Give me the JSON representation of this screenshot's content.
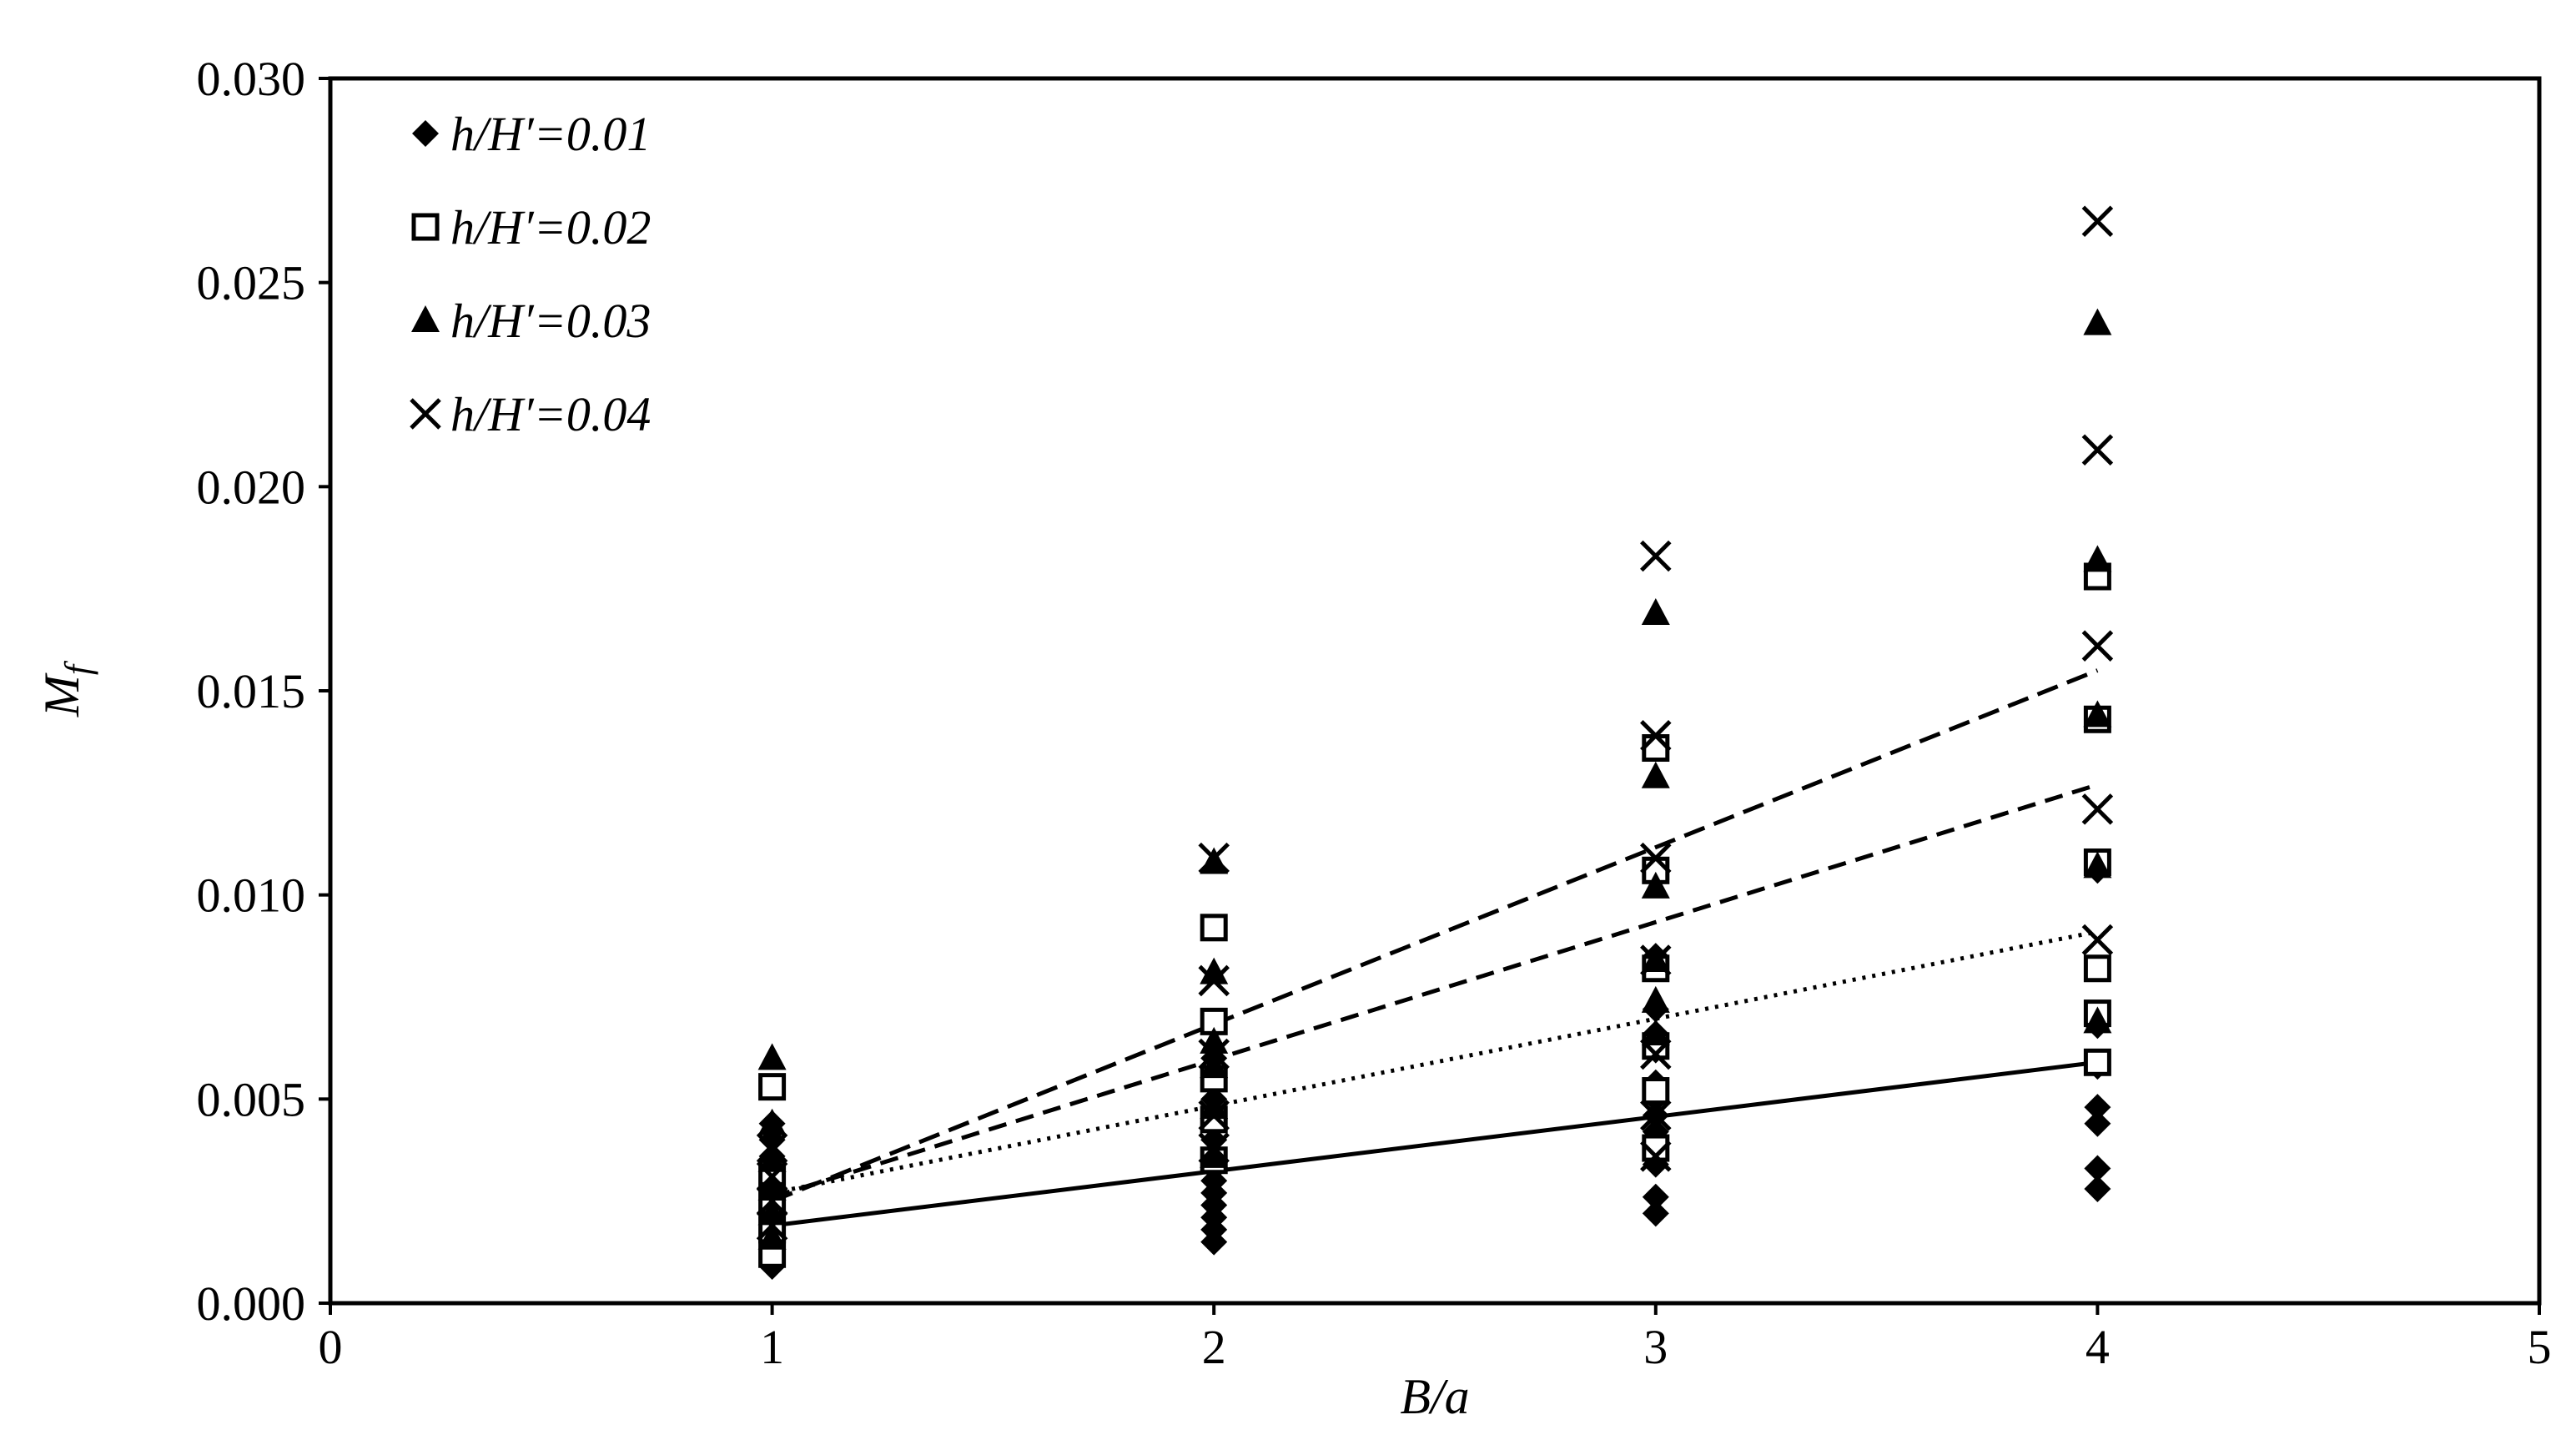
{
  "chart_data": {
    "type": "scatter",
    "title": "",
    "xlabel": "B/a",
    "ylabel": {
      "main": "M",
      "sub": "f"
    },
    "xlim": [
      0,
      5
    ],
    "ylim": [
      0,
      0.03
    ],
    "x_ticks": [
      "0",
      "1",
      "2",
      "3",
      "4",
      "5"
    ],
    "y_ticks": [
      "0.000",
      "0.005",
      "0.010",
      "0.015",
      "0.020",
      "0.025",
      "0.030"
    ],
    "grid": false,
    "legend_position": "top-left",
    "series": [
      {
        "name": "h/H′=0.01",
        "marker": "diamond",
        "trendline_style": "solid",
        "trendline": [
          [
            1,
            0.0019
          ],
          [
            4,
            0.0059
          ]
        ],
        "points": [
          [
            1,
            0.0009
          ],
          [
            1,
            0.0011
          ],
          [
            1,
            0.0013
          ],
          [
            1,
            0.0015
          ],
          [
            1,
            0.0017
          ],
          [
            1,
            0.0019
          ],
          [
            1,
            0.0021
          ],
          [
            1,
            0.0023
          ],
          [
            1,
            0.0025
          ],
          [
            1,
            0.0027
          ],
          [
            1,
            0.0029
          ],
          [
            1,
            0.0032
          ],
          [
            1,
            0.0036
          ],
          [
            1,
            0.004
          ],
          [
            1,
            0.0044
          ],
          [
            2,
            0.0015
          ],
          [
            2,
            0.0018
          ],
          [
            2,
            0.0021
          ],
          [
            2,
            0.0024
          ],
          [
            2,
            0.0027
          ],
          [
            2,
            0.003
          ],
          [
            2,
            0.0033
          ],
          [
            2,
            0.0036
          ],
          [
            2,
            0.004
          ],
          [
            2,
            0.0045
          ],
          [
            2,
            0.005
          ],
          [
            2,
            0.0055
          ],
          [
            2,
            0.006
          ],
          [
            3,
            0.0022
          ],
          [
            3,
            0.0026
          ],
          [
            3,
            0.0034
          ],
          [
            3,
            0.0038
          ],
          [
            3,
            0.0042
          ],
          [
            3,
            0.0046
          ],
          [
            3,
            0.005
          ],
          [
            3,
            0.0054
          ],
          [
            3,
            0.0062
          ],
          [
            3,
            0.0066
          ],
          [
            3,
            0.0072
          ],
          [
            3,
            0.0085
          ],
          [
            4,
            0.0028
          ],
          [
            4,
            0.0033
          ],
          [
            4,
            0.0044
          ],
          [
            4,
            0.0048
          ],
          [
            4,
            0.0058
          ],
          [
            4,
            0.0068
          ],
          [
            4,
            0.0071
          ],
          [
            4,
            0.0106
          ]
        ]
      },
      {
        "name": "h/H′=0.02",
        "marker": "open-square",
        "trendline_style": "dotted",
        "trendline": [
          [
            1,
            0.0027
          ],
          [
            4,
            0.0091
          ]
        ],
        "points": [
          [
            1,
            0.0012
          ],
          [
            1,
            0.0018
          ],
          [
            1,
            0.0025
          ],
          [
            1,
            0.0032
          ],
          [
            1,
            0.0053
          ],
          [
            2,
            0.0035
          ],
          [
            2,
            0.0045
          ],
          [
            2,
            0.0055
          ],
          [
            2,
            0.0069
          ],
          [
            2,
            0.0092
          ],
          [
            3,
            0.0038
          ],
          [
            3,
            0.0052
          ],
          [
            3,
            0.0063
          ],
          [
            3,
            0.0082
          ],
          [
            3,
            0.0106
          ],
          [
            3,
            0.0136
          ],
          [
            4,
            0.0059
          ],
          [
            4,
            0.0071
          ],
          [
            4,
            0.0082
          ],
          [
            4,
            0.0108
          ],
          [
            4,
            0.0143
          ],
          [
            4,
            0.0178
          ]
        ]
      },
      {
        "name": "h/H′=0.03",
        "marker": "filled-triangle",
        "trendline_style": "short-dash",
        "trendline": [
          [
            1,
            0.0026
          ],
          [
            4,
            0.0127
          ]
        ],
        "points": [
          [
            1,
            0.0016
          ],
          [
            1,
            0.0022
          ],
          [
            1,
            0.0028
          ],
          [
            1,
            0.0035
          ],
          [
            1,
            0.0044
          ],
          [
            1,
            0.006
          ],
          [
            2,
            0.0036
          ],
          [
            2,
            0.0048
          ],
          [
            2,
            0.0058
          ],
          [
            2,
            0.0064
          ],
          [
            2,
            0.0081
          ],
          [
            2,
            0.0108
          ],
          [
            3,
            0.0066
          ],
          [
            3,
            0.0074
          ],
          [
            3,
            0.0084
          ],
          [
            3,
            0.0102
          ],
          [
            3,
            0.0129
          ],
          [
            3,
            0.0169
          ],
          [
            4,
            0.0069
          ],
          [
            4,
            0.0107
          ],
          [
            4,
            0.0144
          ],
          [
            4,
            0.0182
          ],
          [
            4,
            0.024
          ]
        ]
      },
      {
        "name": "h/H′=0.04",
        "marker": "cross",
        "trendline_style": "long-dash",
        "trendline": [
          [
            1,
            0.0025
          ],
          [
            4,
            0.0155
          ]
        ],
        "points": [
          [
            1,
            0.0019
          ],
          [
            1,
            0.0025
          ],
          [
            1,
            0.0031
          ],
          [
            1,
            0.0038
          ],
          [
            2,
            0.0038
          ],
          [
            2,
            0.0046
          ],
          [
            2,
            0.0061
          ],
          [
            2,
            0.0079
          ],
          [
            2,
            0.0109
          ],
          [
            3,
            0.0036
          ],
          [
            3,
            0.0046
          ],
          [
            3,
            0.0061
          ],
          [
            3,
            0.0084
          ],
          [
            3,
            0.0109
          ],
          [
            3,
            0.0139
          ],
          [
            3,
            0.0183
          ],
          [
            4,
            0.0089
          ],
          [
            4,
            0.0121
          ],
          [
            4,
            0.0161
          ],
          [
            4,
            0.0209
          ],
          [
            4,
            0.0265
          ]
        ]
      }
    ]
  }
}
